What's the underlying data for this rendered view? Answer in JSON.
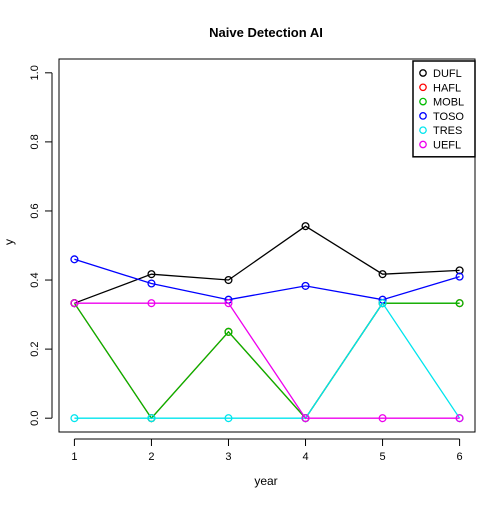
{
  "chart_data": {
    "type": "line",
    "title": "Naive Detection AI",
    "xlabel": "year",
    "ylabel": "y",
    "x": [
      1,
      2,
      3,
      4,
      5,
      6
    ],
    "x_ticks": [
      1,
      2,
      3,
      4,
      5,
      6
    ],
    "xlim": [
      0.8,
      6.2
    ],
    "y_ticks": [
      "0.0",
      "0.2",
      "0.4",
      "0.6",
      "0.8",
      "1.0"
    ],
    "ylim": [
      -0.04,
      1.04
    ],
    "grid": false,
    "legend_position": "top-right",
    "series": [
      {
        "name": "DUFL",
        "color": "#000000",
        "values": [
          0.333,
          0.417,
          0.4,
          0.556,
          0.417,
          0.428
        ]
      },
      {
        "name": "HAFL",
        "color": "#ff0000",
        "values": [
          0.333,
          0.0,
          0.25,
          0.0,
          0.333,
          0.333
        ]
      },
      {
        "name": "MOBL",
        "color": "#00bb00",
        "values": [
          0.333,
          0.0,
          0.25,
          0.0,
          0.333,
          0.333
        ]
      },
      {
        "name": "TOSO",
        "color": "#0000ff",
        "values": [
          0.46,
          0.39,
          0.343,
          0.383,
          0.343,
          0.41
        ]
      },
      {
        "name": "TRES",
        "color": "#00e5ee",
        "values": [
          0.0,
          0.0,
          0.0,
          0.0,
          0.333,
          0.0
        ]
      },
      {
        "name": "UEFL",
        "color": "#ee00ee",
        "values": [
          0.333,
          0.333,
          0.333,
          0.0,
          0.0,
          0.0
        ]
      }
    ]
  }
}
